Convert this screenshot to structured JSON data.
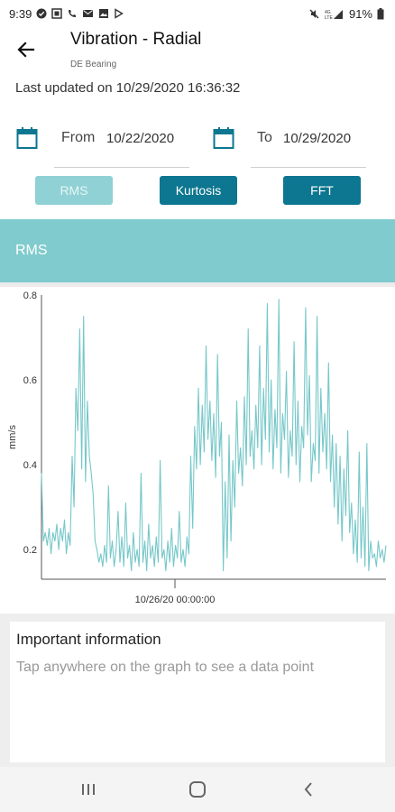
{
  "status_bar": {
    "time": "9:39",
    "battery": "91%",
    "left_icons": [
      "check-circle-icon",
      "gallery-icon",
      "call-icon",
      "mail-icon",
      "image-icon",
      "play-icon"
    ],
    "right_icons": [
      "mute-icon",
      "signal-icon",
      "battery-icon"
    ]
  },
  "app_bar": {
    "title": "Vibration - Radial",
    "subtitle": "DE Bearing",
    "back_icon": "arrow-back-icon"
  },
  "last_updated": "Last updated on 10/29/2020 16:36:32",
  "date_range": {
    "from_label": "From",
    "from_value": "10/22/2020",
    "to_label": "To",
    "to_value": "10/29/2020",
    "icon": "calendar-icon"
  },
  "segments": {
    "rms": "RMS",
    "kurtosis": "Kurtosis",
    "fft": "FFT",
    "selected": "RMS"
  },
  "panel_title": "RMS",
  "colors": {
    "accent": "#0d7690",
    "header": "#80cbcd",
    "line": "#76c7c9",
    "selected_segment": "#8fd1d4"
  },
  "chart_data": {
    "type": "line",
    "title": "",
    "xlabel": "",
    "ylabel": "mm/s",
    "yticks": [
      "0.2",
      "0.4",
      "0.6",
      "0.8"
    ],
    "xtick_label": "10/26/20 00:00:00",
    "ylim": [
      0.13,
      0.8
    ],
    "grid": false,
    "series": [
      {
        "values": [
          0.38,
          0.22,
          0.24,
          0.21,
          0.25,
          0.19,
          0.24,
          0.22,
          0.26,
          0.2,
          0.25,
          0.22,
          0.27,
          0.19,
          0.24,
          0.21,
          0.42,
          0.3,
          0.58,
          0.48,
          0.72,
          0.39,
          0.75,
          0.36,
          0.55,
          0.42,
          0.38,
          0.33,
          0.22,
          0.2,
          0.17,
          0.19,
          0.16,
          0.21,
          0.17,
          0.35,
          0.18,
          0.22,
          0.16,
          0.2,
          0.29,
          0.17,
          0.23,
          0.16,
          0.31,
          0.18,
          0.21,
          0.15,
          0.24,
          0.17,
          0.2,
          0.16,
          0.38,
          0.17,
          0.22,
          0.15,
          0.26,
          0.18,
          0.21,
          0.16,
          0.23,
          0.17,
          0.41,
          0.18,
          0.2,
          0.15,
          0.22,
          0.17,
          0.25,
          0.16,
          0.21,
          0.18,
          0.29,
          0.17,
          0.2,
          0.16,
          0.23,
          0.19,
          0.42,
          0.25,
          0.49,
          0.39,
          0.58,
          0.4,
          0.54,
          0.43,
          0.68,
          0.46,
          0.55,
          0.41,
          0.52,
          0.37,
          0.66,
          0.42,
          0.5,
          0.15,
          0.36,
          0.18,
          0.47,
          0.22,
          0.41,
          0.3,
          0.55,
          0.38,
          0.44,
          0.35,
          0.56,
          0.4,
          0.72,
          0.42,
          0.48,
          0.39,
          0.54,
          0.44,
          0.68,
          0.4,
          0.58,
          0.46,
          0.78,
          0.43,
          0.6,
          0.39,
          0.53,
          0.44,
          0.79,
          0.38,
          0.52,
          0.46,
          0.62,
          0.37,
          0.48,
          0.42,
          0.69,
          0.4,
          0.55,
          0.36,
          0.49,
          0.44,
          0.77,
          0.47,
          0.61,
          0.36,
          0.45,
          0.41,
          0.75,
          0.38,
          0.58,
          0.43,
          0.52,
          0.39,
          0.64,
          0.36,
          0.47,
          0.3,
          0.45,
          0.26,
          0.42,
          0.22,
          0.39,
          0.28,
          0.48,
          0.24,
          0.31,
          0.19,
          0.27,
          0.17,
          0.43,
          0.18,
          0.3,
          0.16,
          0.45,
          0.15,
          0.22,
          0.18,
          0.19,
          0.16,
          0.22,
          0.18,
          0.2,
          0.17,
          0.21
        ]
      }
    ]
  },
  "info": {
    "title": "Important information",
    "text": "Tap anywhere on the graph to see a data point"
  },
  "nav": {
    "recent_icon": "recents-icon",
    "home_icon": "home-icon",
    "back_icon": "back-chevron-icon"
  }
}
